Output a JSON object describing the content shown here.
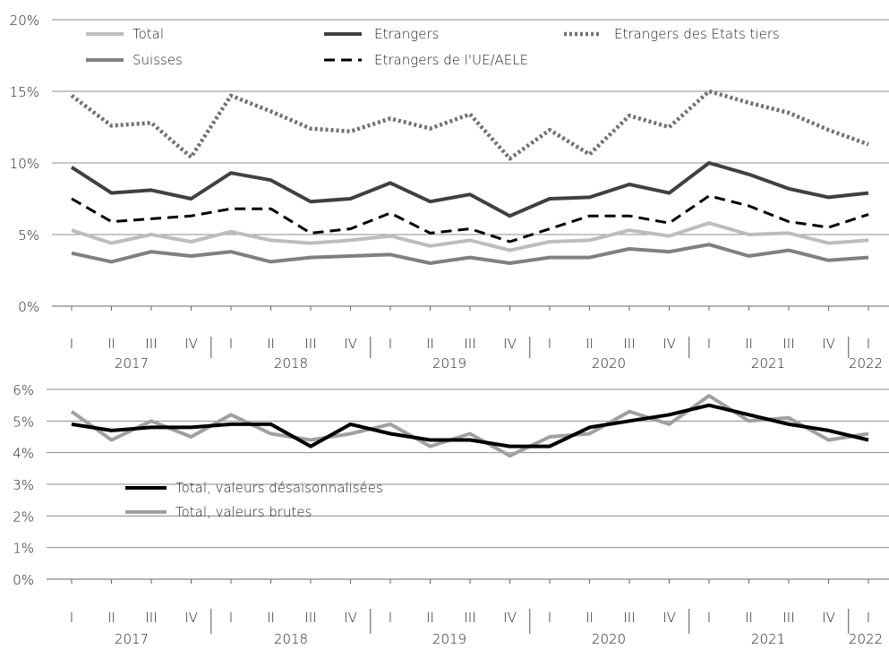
{
  "chart_data": [
    {
      "type": "line",
      "title": "",
      "xlabel": "",
      "ylabel": "",
      "ylim": [
        0,
        20
      ],
      "y_ticks": [
        "0%",
        "5%",
        "10%",
        "15%",
        "20%"
      ],
      "y_tick_values": [
        0,
        5,
        10,
        15,
        20
      ],
      "grid": true,
      "legend_position": "top",
      "categories": [
        "I",
        "II",
        "III",
        "IV",
        "I",
        "II",
        "III",
        "IV",
        "I",
        "II",
        "III",
        "IV",
        "I",
        "II",
        "III",
        "IV",
        "I",
        "II",
        "III",
        "IV",
        "I"
      ],
      "years": [
        "2017",
        "2018",
        "2019",
        "2020",
        "2021",
        "2022"
      ],
      "series": [
        {
          "name": "Total",
          "color": "#bdbdbd",
          "dash": "solid",
          "values": [
            5.3,
            4.4,
            5.0,
            4.5,
            5.2,
            4.6,
            4.4,
            4.6,
            4.9,
            4.2,
            4.6,
            3.9,
            4.5,
            4.6,
            5.3,
            4.9,
            5.8,
            5.0,
            5.1,
            4.4,
            4.6
          ]
        },
        {
          "name": "Suisses",
          "color": "#808080",
          "dash": "solid",
          "values": [
            3.7,
            3.1,
            3.8,
            3.5,
            3.8,
            3.1,
            3.4,
            3.5,
            3.6,
            3.0,
            3.4,
            3.0,
            3.4,
            3.4,
            4.0,
            3.8,
            4.3,
            3.5,
            3.9,
            3.2,
            3.4
          ]
        },
        {
          "name": "Etrangers",
          "color": "#404040",
          "dash": "solid",
          "values": [
            9.7,
            7.9,
            8.1,
            7.5,
            9.3,
            8.8,
            7.3,
            7.5,
            8.6,
            7.3,
            7.8,
            6.3,
            7.5,
            7.6,
            8.5,
            7.9,
            10.0,
            9.2,
            8.2,
            7.6,
            7.9
          ]
        },
        {
          "name": "Etrangers de l'UE/AELE",
          "color": "#000000",
          "dash": "dashed",
          "values": [
            7.5,
            5.9,
            6.1,
            6.3,
            6.8,
            6.8,
            5.1,
            5.4,
            6.5,
            5.1,
            5.4,
            4.5,
            5.4,
            6.3,
            6.3,
            5.8,
            7.7,
            7.0,
            5.9,
            5.5,
            6.4
          ]
        },
        {
          "name": "Etrangers des Etats tiers",
          "color": "#707070",
          "dash": "dotted",
          "values": [
            14.7,
            12.6,
            12.8,
            10.4,
            14.7,
            13.6,
            12.4,
            12.2,
            13.1,
            12.4,
            13.4,
            10.3,
            12.3,
            10.6,
            13.3,
            12.5,
            15.0,
            14.2,
            13.5,
            12.3,
            11.3
          ]
        }
      ]
    },
    {
      "type": "line",
      "title": "",
      "xlabel": "",
      "ylabel": "",
      "ylim": [
        0,
        6
      ],
      "y_ticks": [
        "0%",
        "1%",
        "2%",
        "3%",
        "4%",
        "5%",
        "6%"
      ],
      "y_tick_values": [
        0,
        1,
        2,
        3,
        4,
        5,
        6
      ],
      "grid": true,
      "legend_position": "middle-left",
      "categories": [
        "I",
        "II",
        "III",
        "IV",
        "I",
        "II",
        "III",
        "IV",
        "I",
        "II",
        "III",
        "IV",
        "I",
        "II",
        "III",
        "IV",
        "I",
        "II",
        "III",
        "IV",
        "I"
      ],
      "years": [
        "2017",
        "2018",
        "2019",
        "2020",
        "2021",
        "2022"
      ],
      "series": [
        {
          "name": "Total, valeurs brutes",
          "color": "#a0a0a0",
          "dash": "solid",
          "values": [
            5.3,
            4.4,
            5.0,
            4.5,
            5.2,
            4.6,
            4.4,
            4.6,
            4.9,
            4.2,
            4.6,
            3.9,
            4.5,
            4.6,
            5.3,
            4.9,
            5.8,
            5.0,
            5.1,
            4.4,
            4.6
          ]
        },
        {
          "name": "Total, valeurs désaisonnalisées",
          "color": "#000000",
          "dash": "solid",
          "values": [
            4.9,
            4.7,
            4.8,
            4.8,
            4.9,
            4.9,
            4.2,
            4.9,
            4.6,
            4.4,
            4.4,
            4.2,
            4.2,
            4.8,
            5.0,
            5.2,
            5.5,
            5.2,
            4.9,
            4.7,
            4.4
          ]
        }
      ]
    }
  ]
}
